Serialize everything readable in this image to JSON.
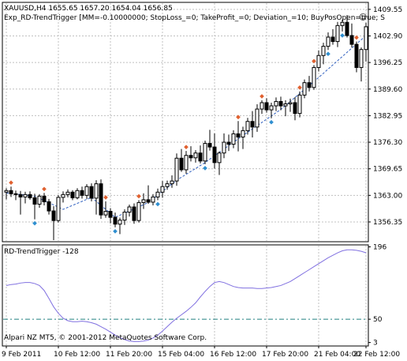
{
  "header": {
    "symbol_line": "XAUUSD,H4  1655.65 1657.20 1654.04 1656.85",
    "expert_line": "Exp_RD-TrendTrigger [MM=-0.10000000; StopLoss_=0; TakeProfit_=0; Deviation_=10; BuyPosOpen=true; S",
    "expert_smiley": "☺"
  },
  "indicator": {
    "label": "RD-TrendTrigger -128"
  },
  "footer": {
    "copyright": "Alpari NZ MT5, © 2001-2012 MetaQuotes Software Corp."
  },
  "colors": {
    "background": "#ffffff",
    "grid": "#c0c0c0",
    "axis": "#000000",
    "bull_candle_fill": "#ffffff",
    "bear_candle_fill": "#000000",
    "signal_sell": "#e0602f",
    "signal_buy": "#2f8fd0",
    "trend_line": "#3060c0",
    "indicator_line": "#8070e0",
    "level_line": "#208080"
  },
  "chart_data": [
    {
      "type": "candlestick",
      "symbol": "XAUUSD",
      "timeframe": "H4",
      "ylim": [
        1351.4,
        1411.3
      ],
      "y_ticks": [
        "1409.55",
        "1402.90",
        "1396.25",
        "1389.60",
        "1382.95",
        "1376.30",
        "1369.65",
        "1363.00",
        "1356.35"
      ],
      "x_ticks": [
        "9 Feb 2011",
        "10 Feb 12:00",
        "11 Feb 20:00",
        "15 Feb 04:00",
        "16 Feb 12:00",
        "17 Feb 20:00",
        "21 Feb 04:00",
        "22 Feb 12:00"
      ],
      "grid": true,
      "candles": [
        [
          1363.8,
          1364.8,
          1362.0,
          1364.2
        ],
        [
          1364.2,
          1365.2,
          1362.6,
          1363.4
        ],
        [
          1363.4,
          1364.2,
          1361.8,
          1363.2
        ],
        [
          1363.2,
          1364.1,
          1358.2,
          1362.6
        ],
        [
          1362.6,
          1363.9,
          1361.0,
          1363.2
        ],
        [
          1363.2,
          1364.0,
          1361.9,
          1362.4
        ],
        [
          1362.4,
          1363.4,
          1357.0,
          1360.8
        ],
        [
          1360.8,
          1363.3,
          1359.9,
          1362.8
        ],
        [
          1362.8,
          1363.6,
          1360.5,
          1361.4
        ],
        [
          1361.4,
          1362.1,
          1358.2,
          1359.1
        ],
        [
          1359.1,
          1360.3,
          1351.8,
          1356.7
        ],
        [
          1356.7,
          1363.1,
          1356.2,
          1362.5
        ],
        [
          1362.5,
          1364.0,
          1361.2,
          1363.2
        ],
        [
          1363.2,
          1364.5,
          1362.5,
          1363.8
        ],
        [
          1363.8,
          1364.3,
          1361.8,
          1362.4
        ],
        [
          1362.4,
          1364.8,
          1362.0,
          1364.2
        ],
        [
          1364.2,
          1365.2,
          1362.2,
          1363.0
        ],
        [
          1363.0,
          1365.8,
          1362.1,
          1365.2
        ],
        [
          1365.2,
          1366.0,
          1361.5,
          1362.3
        ],
        [
          1362.3,
          1366.8,
          1358.2,
          1365.9
        ],
        [
          1365.9,
          1367.0,
          1357.1,
          1358.1
        ],
        [
          1358.1,
          1361.5,
          1357.4,
          1359.0
        ],
        [
          1359.0,
          1359.8,
          1356.0,
          1357.5
        ],
        [
          1357.5,
          1358.7,
          1355.0,
          1355.8
        ],
        [
          1355.8,
          1357.4,
          1353.3,
          1356.8
        ],
        [
          1356.8,
          1359.5,
          1355.6,
          1358.8
        ],
        [
          1358.8,
          1360.7,
          1357.7,
          1360.1
        ],
        [
          1360.1,
          1361.0,
          1355.9,
          1356.7
        ],
        [
          1356.7,
          1361.8,
          1356.2,
          1361.2
        ],
        [
          1361.2,
          1363.5,
          1359.6,
          1361.9
        ],
        [
          1361.9,
          1365.5,
          1360.9,
          1361.3
        ],
        [
          1361.3,
          1363.3,
          1360.5,
          1362.6
        ],
        [
          1362.6,
          1364.7,
          1361.8,
          1363.8
        ],
        [
          1363.8,
          1366.6,
          1362.4,
          1365.2
        ],
        [
          1365.2,
          1366.7,
          1364.4,
          1365.9
        ],
        [
          1365.9,
          1368.0,
          1364.9,
          1366.6
        ],
        [
          1366.6,
          1373.5,
          1365.4,
          1372.3
        ],
        [
          1372.3,
          1374.6,
          1368.9,
          1369.4
        ],
        [
          1369.4,
          1374.1,
          1368.4,
          1373.0
        ],
        [
          1373.0,
          1375.3,
          1371.5,
          1372.4
        ],
        [
          1372.4,
          1374.3,
          1371.2,
          1373.6
        ],
        [
          1373.6,
          1375.5,
          1371.0,
          1371.6
        ],
        [
          1371.6,
          1376.7,
          1370.8,
          1376.0
        ],
        [
          1376.0,
          1379.4,
          1374.2,
          1375.1
        ],
        [
          1375.1,
          1378.5,
          1369.7,
          1371.2
        ],
        [
          1371.2,
          1374.0,
          1368.1,
          1373.6
        ],
        [
          1373.6,
          1378.5,
          1372.3,
          1376.3
        ],
        [
          1376.3,
          1378.2,
          1374.1,
          1375.8
        ],
        [
          1375.8,
          1379.3,
          1374.8,
          1378.4
        ],
        [
          1378.4,
          1381.6,
          1374.0,
          1377.6
        ],
        [
          1377.6,
          1380.2,
          1374.6,
          1379.2
        ],
        [
          1379.2,
          1382.4,
          1378.2,
          1381.5
        ],
        [
          1381.5,
          1384.1,
          1377.5,
          1380.1
        ],
        [
          1380.1,
          1385.8,
          1378.9,
          1384.6
        ],
        [
          1384.6,
          1386.8,
          1383.4,
          1386.2
        ],
        [
          1386.2,
          1387.3,
          1383.7,
          1384.4
        ],
        [
          1384.4,
          1386.2,
          1382.3,
          1385.4
        ],
        [
          1385.4,
          1387.5,
          1384.1,
          1386.5
        ],
        [
          1386.5,
          1387.7,
          1384.3,
          1385.4
        ],
        [
          1385.4,
          1386.8,
          1382.8,
          1385.9
        ],
        [
          1385.9,
          1387.2,
          1383.9,
          1386.2
        ],
        [
          1386.2,
          1387.6,
          1381.8,
          1383.5
        ],
        [
          1383.5,
          1389.0,
          1382.5,
          1388.1
        ],
        [
          1388.1,
          1392.0,
          1387.3,
          1391.2
        ],
        [
          1391.2,
          1392.9,
          1389.0,
          1390.0
        ],
        [
          1390.0,
          1395.6,
          1389.4,
          1395.0
        ],
        [
          1395.0,
          1399.3,
          1394.0,
          1398.0
        ],
        [
          1398.0,
          1401.2,
          1395.8,
          1400.3
        ],
        [
          1400.3,
          1403.8,
          1399.4,
          1402.6
        ],
        [
          1402.6,
          1404.6,
          1400.7,
          1401.5
        ],
        [
          1401.5,
          1406.4,
          1400.1,
          1405.5
        ],
        [
          1405.5,
          1407.0,
          1404.0,
          1406.3
        ],
        [
          1406.3,
          1408.1,
          1402.5,
          1403.0
        ],
        [
          1403.0,
          1406.0,
          1400.0,
          1400.8
        ],
        [
          1400.8,
          1401.5,
          1393.8,
          1395.0
        ],
        [
          1395.0,
          1400.0,
          1391.5,
          1399.5
        ],
        [
          1399.5,
          1406.2,
          1396.5,
          1405.2
        ]
      ],
      "sell_signal_bars": [
        1,
        8,
        21,
        28,
        38,
        49,
        54,
        62,
        65,
        74
      ],
      "buy_signal_bars": [
        6,
        23,
        32,
        42,
        56,
        68,
        71
      ],
      "trend_line_points": [
        [
          0,
          1363.6
        ],
        [
          6,
          1362.8
        ],
        [
          12,
          1359.5
        ],
        [
          18,
          1362.5
        ],
        [
          23,
          1357.5
        ],
        [
          30,
          1361.2
        ],
        [
          36,
          1366.8
        ],
        [
          42,
          1371.2
        ],
        [
          50,
          1378.0
        ],
        [
          58,
          1384.5
        ],
        [
          66,
          1392.5
        ],
        [
          72,
          1398.8
        ],
        [
          76,
          1403.0
        ]
      ]
    },
    {
      "type": "line",
      "name": "RD-TrendTrigger -128",
      "ylim": [
        -4,
        200
      ],
      "y_ticks": [
        "196",
        "50",
        "3"
      ],
      "level": 50,
      "grid": true,
      "values": [
        118,
        120,
        121,
        123,
        124,
        124,
        122,
        118,
        108,
        92,
        75,
        62,
        52,
        47,
        45,
        45,
        46,
        45,
        43,
        40,
        35,
        30,
        24,
        18,
        13,
        9,
        6,
        5,
        5,
        6,
        8,
        12,
        18,
        26,
        35,
        44,
        52,
        59,
        66,
        74,
        83,
        95,
        106,
        116,
        124,
        126,
        124,
        120,
        116,
        114,
        113,
        113,
        113,
        112,
        112,
        113,
        114,
        116,
        118,
        122,
        126,
        132,
        138,
        144,
        150,
        156,
        162,
        168,
        174,
        179,
        184,
        188,
        190,
        190,
        189,
        187,
        184
      ]
    }
  ]
}
